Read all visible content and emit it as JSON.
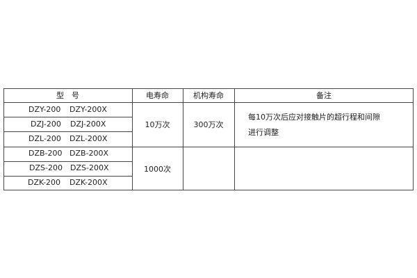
{
  "table": {
    "headers": [
      "型　号",
      "电寿命",
      "机构寿命",
      "备注"
    ],
    "rows": [
      [
        "DZY-200",
        "DZY-200X"
      ],
      [
        "DZJ-200",
        "DZJ-200X"
      ],
      [
        "DZL-200",
        "DZL-200X"
      ],
      [
        "DZB-200",
        "DZB-200X"
      ],
      [
        "DZS-200",
        "DZS-200X"
      ],
      [
        "DZK-200",
        "DZK-200X"
      ]
    ],
    "electrical_life": [
      "10万次",
      "1000次"
    ],
    "mechanical_life": [
      "300万次",
      ""
    ],
    "remarks": [
      "每10万次后应对接触片的超行程和间隙",
      "进行调整"
    ]
  }
}
